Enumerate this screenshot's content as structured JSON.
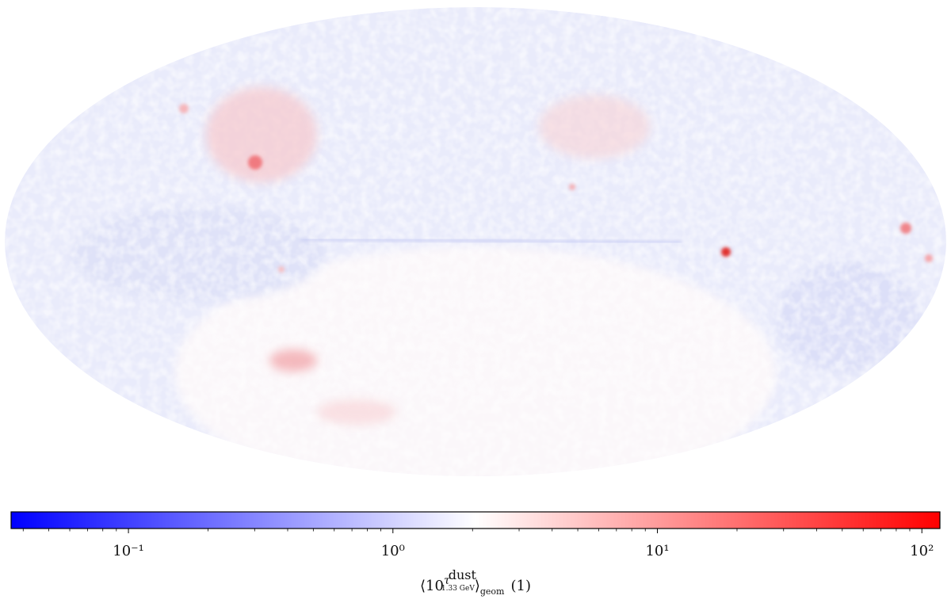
{
  "chart_data": {
    "type": "skymap",
    "projection": "mollweide",
    "colorbar": {
      "scale": "log",
      "clim": [
        0.036,
        117
      ],
      "cmap": [
        "#0000ff",
        "#ffffff",
        "#ff0000"
      ],
      "cticks": [
        {
          "value": 0.1,
          "label": "10⁻¹"
        },
        {
          "value": 1,
          "label": "10⁰"
        },
        {
          "value": 10,
          "label": "10¹"
        },
        {
          "value": 100,
          "label": "10²"
        }
      ],
      "cticks_minor": [
        0.04,
        0.05,
        0.06,
        0.07,
        0.08,
        0.09,
        0.2,
        0.3,
        0.4,
        0.5,
        0.6,
        0.7,
        0.8,
        0.9,
        2,
        3,
        4,
        5,
        6,
        7,
        8,
        9,
        20,
        30,
        40,
        50,
        60,
        70,
        80,
        90
      ],
      "label": {
        "open": "⟨10",
        "tau": "τ",
        "sup": "dust",
        "sub": "1.33 GeV",
        "close": "⟩",
        "geom": "geom",
        "unit": "(1)"
      }
    }
  }
}
